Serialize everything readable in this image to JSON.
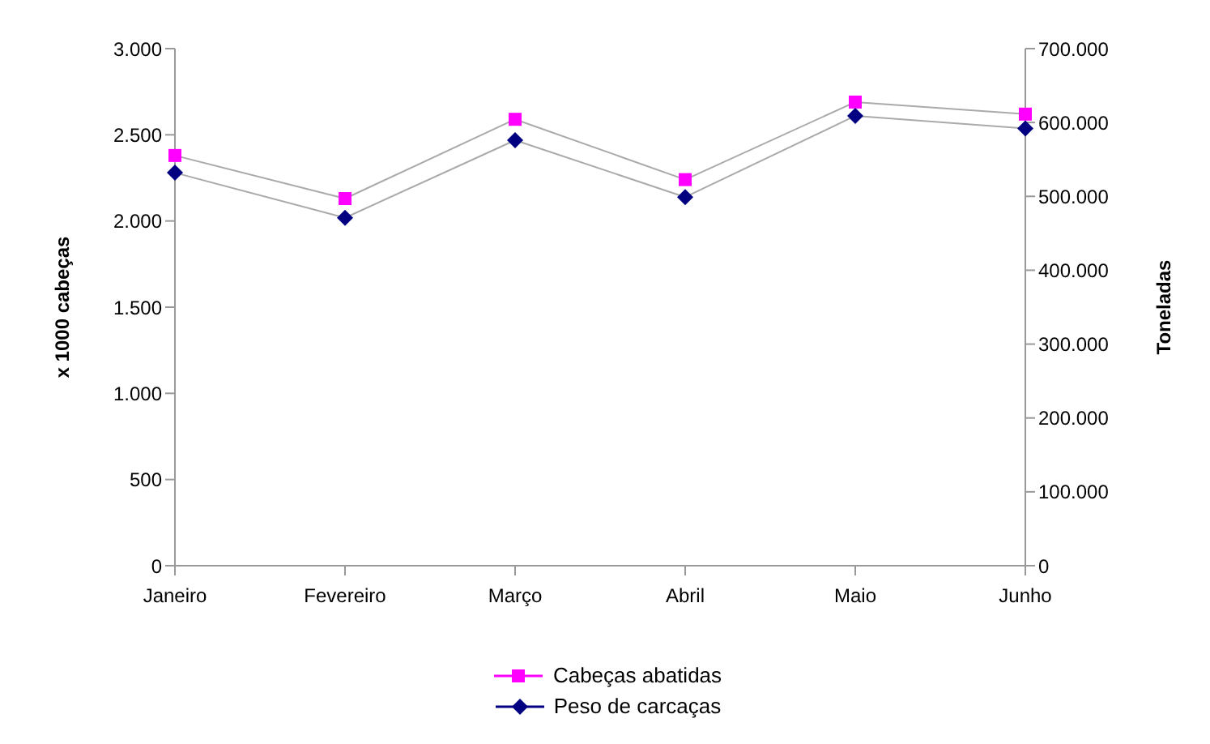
{
  "chart_data": {
    "type": "line",
    "categories": [
      "Janeiro",
      "Fevereiro",
      "Março",
      "Abril",
      "Maio",
      "Junho"
    ],
    "ylabel": "x 1000 cabeças",
    "y2label": "Toneladas",
    "series": [
      {
        "name": "Cabeças abatidas",
        "color": "#ff00ff",
        "marker": "square",
        "values": [
          2380,
          2130,
          2590,
          2240,
          2690,
          2620
        ]
      },
      {
        "name": "Peso de carcaças",
        "color": "#000080",
        "marker": "diamond",
        "axis": "y2",
        "values": [
          532000,
          471000,
          576000,
          499000,
          609000,
          592000
        ]
      }
    ],
    "ylim": [
      0,
      3000
    ],
    "yticks": [
      {
        "value": 0,
        "label": "0"
      },
      {
        "value": 500,
        "label": "500"
      },
      {
        "value": 1000,
        "label": "1.000"
      },
      {
        "value": 1500,
        "label": "1.500"
      },
      {
        "value": 2000,
        "label": "2.000"
      },
      {
        "value": 2500,
        "label": "2.500"
      },
      {
        "value": 3000,
        "label": "3.000"
      }
    ],
    "y2lim": [
      0,
      700000
    ],
    "y2ticks": [
      {
        "value": 0,
        "label": "0"
      },
      {
        "value": 100000,
        "label": "100.000"
      },
      {
        "value": 200000,
        "label": "200.000"
      },
      {
        "value": 300000,
        "label": "300.000"
      },
      {
        "value": 400000,
        "label": "400.000"
      },
      {
        "value": 500000,
        "label": "500.000"
      },
      {
        "value": 600000,
        "label": "600.000"
      },
      {
        "value": 700000,
        "label": "700.000"
      }
    ],
    "grid": false,
    "legend": "bottom"
  }
}
